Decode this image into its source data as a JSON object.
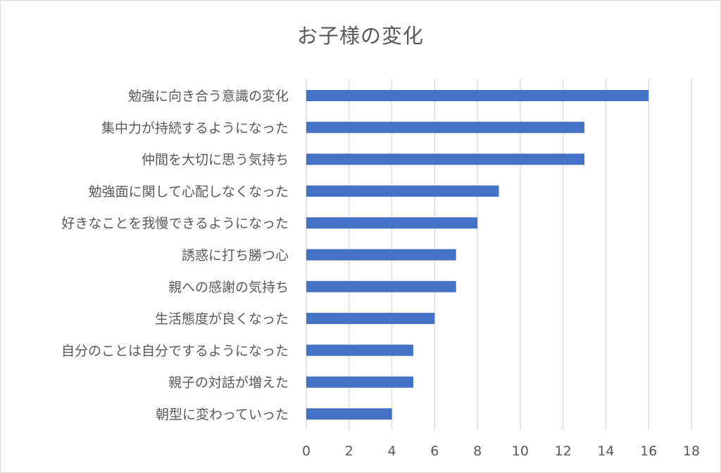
{
  "chart_data": {
    "type": "bar",
    "orientation": "horizontal",
    "title": "お子様の変化",
    "categories": [
      "勉強に向き合う意識の変化",
      "集中力が持続するようになった",
      "仲間を大切に思う気持ち",
      "勉強面に関して心配しなくなった",
      "好きなことを我慢できるようになった",
      "誘惑に打ち勝つ心",
      "親への感謝の気持ち",
      "生活態度が良くなった",
      "自分のことは自分でするようになった",
      "親子の対話が増えた",
      "朝型に変わっていった"
    ],
    "values": [
      16,
      13,
      13,
      9,
      8,
      7,
      7,
      6,
      5,
      5,
      4
    ],
    "xlim": [
      0,
      18
    ],
    "x_ticks": [
      0,
      2,
      4,
      6,
      8,
      10,
      12,
      14,
      16,
      18
    ],
    "grid": "vertical",
    "bar_color": "#4472c4",
    "grid_color": "#d9d9d9",
    "text_color": "#595959"
  }
}
